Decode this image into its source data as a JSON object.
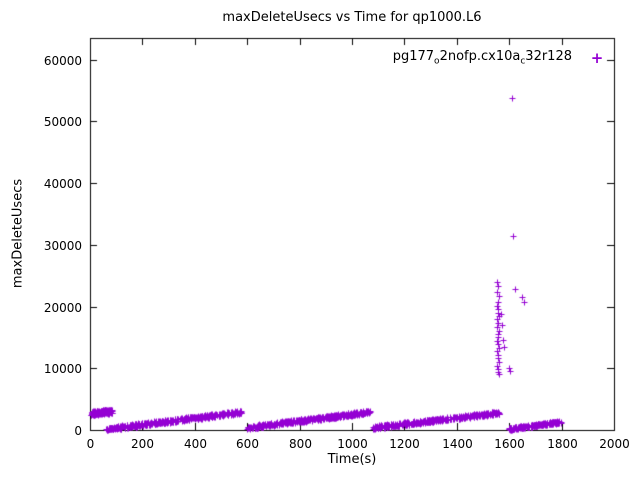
{
  "chart_data": {
    "type": "scatter",
    "title": "maxDeleteUsecs vs Time for qp1000.L6",
    "xlabel": "Time(s)",
    "ylabel": "maxDeleteUsecs",
    "xlim": [
      0,
      2000
    ],
    "ylim": [
      0,
      63500
    ],
    "xticks": [
      0,
      200,
      400,
      600,
      800,
      1000,
      1200,
      1400,
      1600,
      1800,
      2000
    ],
    "yticks": [
      0,
      10000,
      20000,
      30000,
      40000,
      50000,
      60000
    ],
    "grid": false,
    "legend": {
      "parts": [
        "pg177",
        "o",
        "2nofp.cx10a",
        "c",
        "32r128"
      ],
      "marker_symbol": "+",
      "position": "top-right"
    },
    "series": [
      {
        "name": "pg177_o2nofp.cx10a_c32r128",
        "color": "#9400D3",
        "marker": "plus",
        "bands": [
          {
            "x0": 2,
            "x1": 85,
            "y0": 2650,
            "y1": 3050,
            "jitter": 320,
            "n": 150
          },
          {
            "x0": 62,
            "x1": 105,
            "y0": 80,
            "y1": 380,
            "jitter": 160,
            "n": 50
          },
          {
            "x0": 100,
            "x1": 580,
            "y0": 380,
            "y1": 2900,
            "jitter": 260,
            "n": 420
          },
          {
            "x0": 598,
            "x1": 1068,
            "y0": 380,
            "y1": 2950,
            "jitter": 260,
            "n": 420
          },
          {
            "x0": 1080,
            "x1": 1562,
            "y0": 380,
            "y1": 2800,
            "jitter": 260,
            "n": 420
          },
          {
            "x0": 1598,
            "x1": 1800,
            "y0": 150,
            "y1": 1350,
            "jitter": 190,
            "n": 230
          }
        ],
        "outliers": [
          [
            1553,
            23900
          ],
          [
            1558,
            23300
          ],
          [
            1555,
            22400
          ],
          [
            1560,
            21700
          ],
          [
            1556,
            20800
          ],
          [
            1554,
            20100
          ],
          [
            1559,
            19600
          ],
          [
            1557,
            19000
          ],
          [
            1561,
            18400
          ],
          [
            1555,
            17900
          ],
          [
            1558,
            17300
          ],
          [
            1553,
            16700
          ],
          [
            1560,
            16100
          ],
          [
            1556,
            15600
          ],
          [
            1559,
            15000
          ],
          [
            1554,
            14400
          ],
          [
            1557,
            13900
          ],
          [
            1561,
            13300
          ],
          [
            1555,
            12800
          ],
          [
            1558,
            12200
          ],
          [
            1556,
            11600
          ],
          [
            1560,
            11000
          ],
          [
            1554,
            10400
          ],
          [
            1557,
            9900
          ],
          [
            1559,
            9400
          ],
          [
            1562,
            9000
          ],
          [
            1570,
            18800
          ],
          [
            1574,
            17000
          ],
          [
            1578,
            14600
          ],
          [
            1582,
            13500
          ],
          [
            1598,
            10100
          ],
          [
            1604,
            9600
          ],
          [
            1610,
            53800
          ],
          [
            1614,
            31500
          ],
          [
            1622,
            22800
          ],
          [
            1648,
            21500
          ],
          [
            1656,
            20800
          ]
        ]
      }
    ]
  }
}
